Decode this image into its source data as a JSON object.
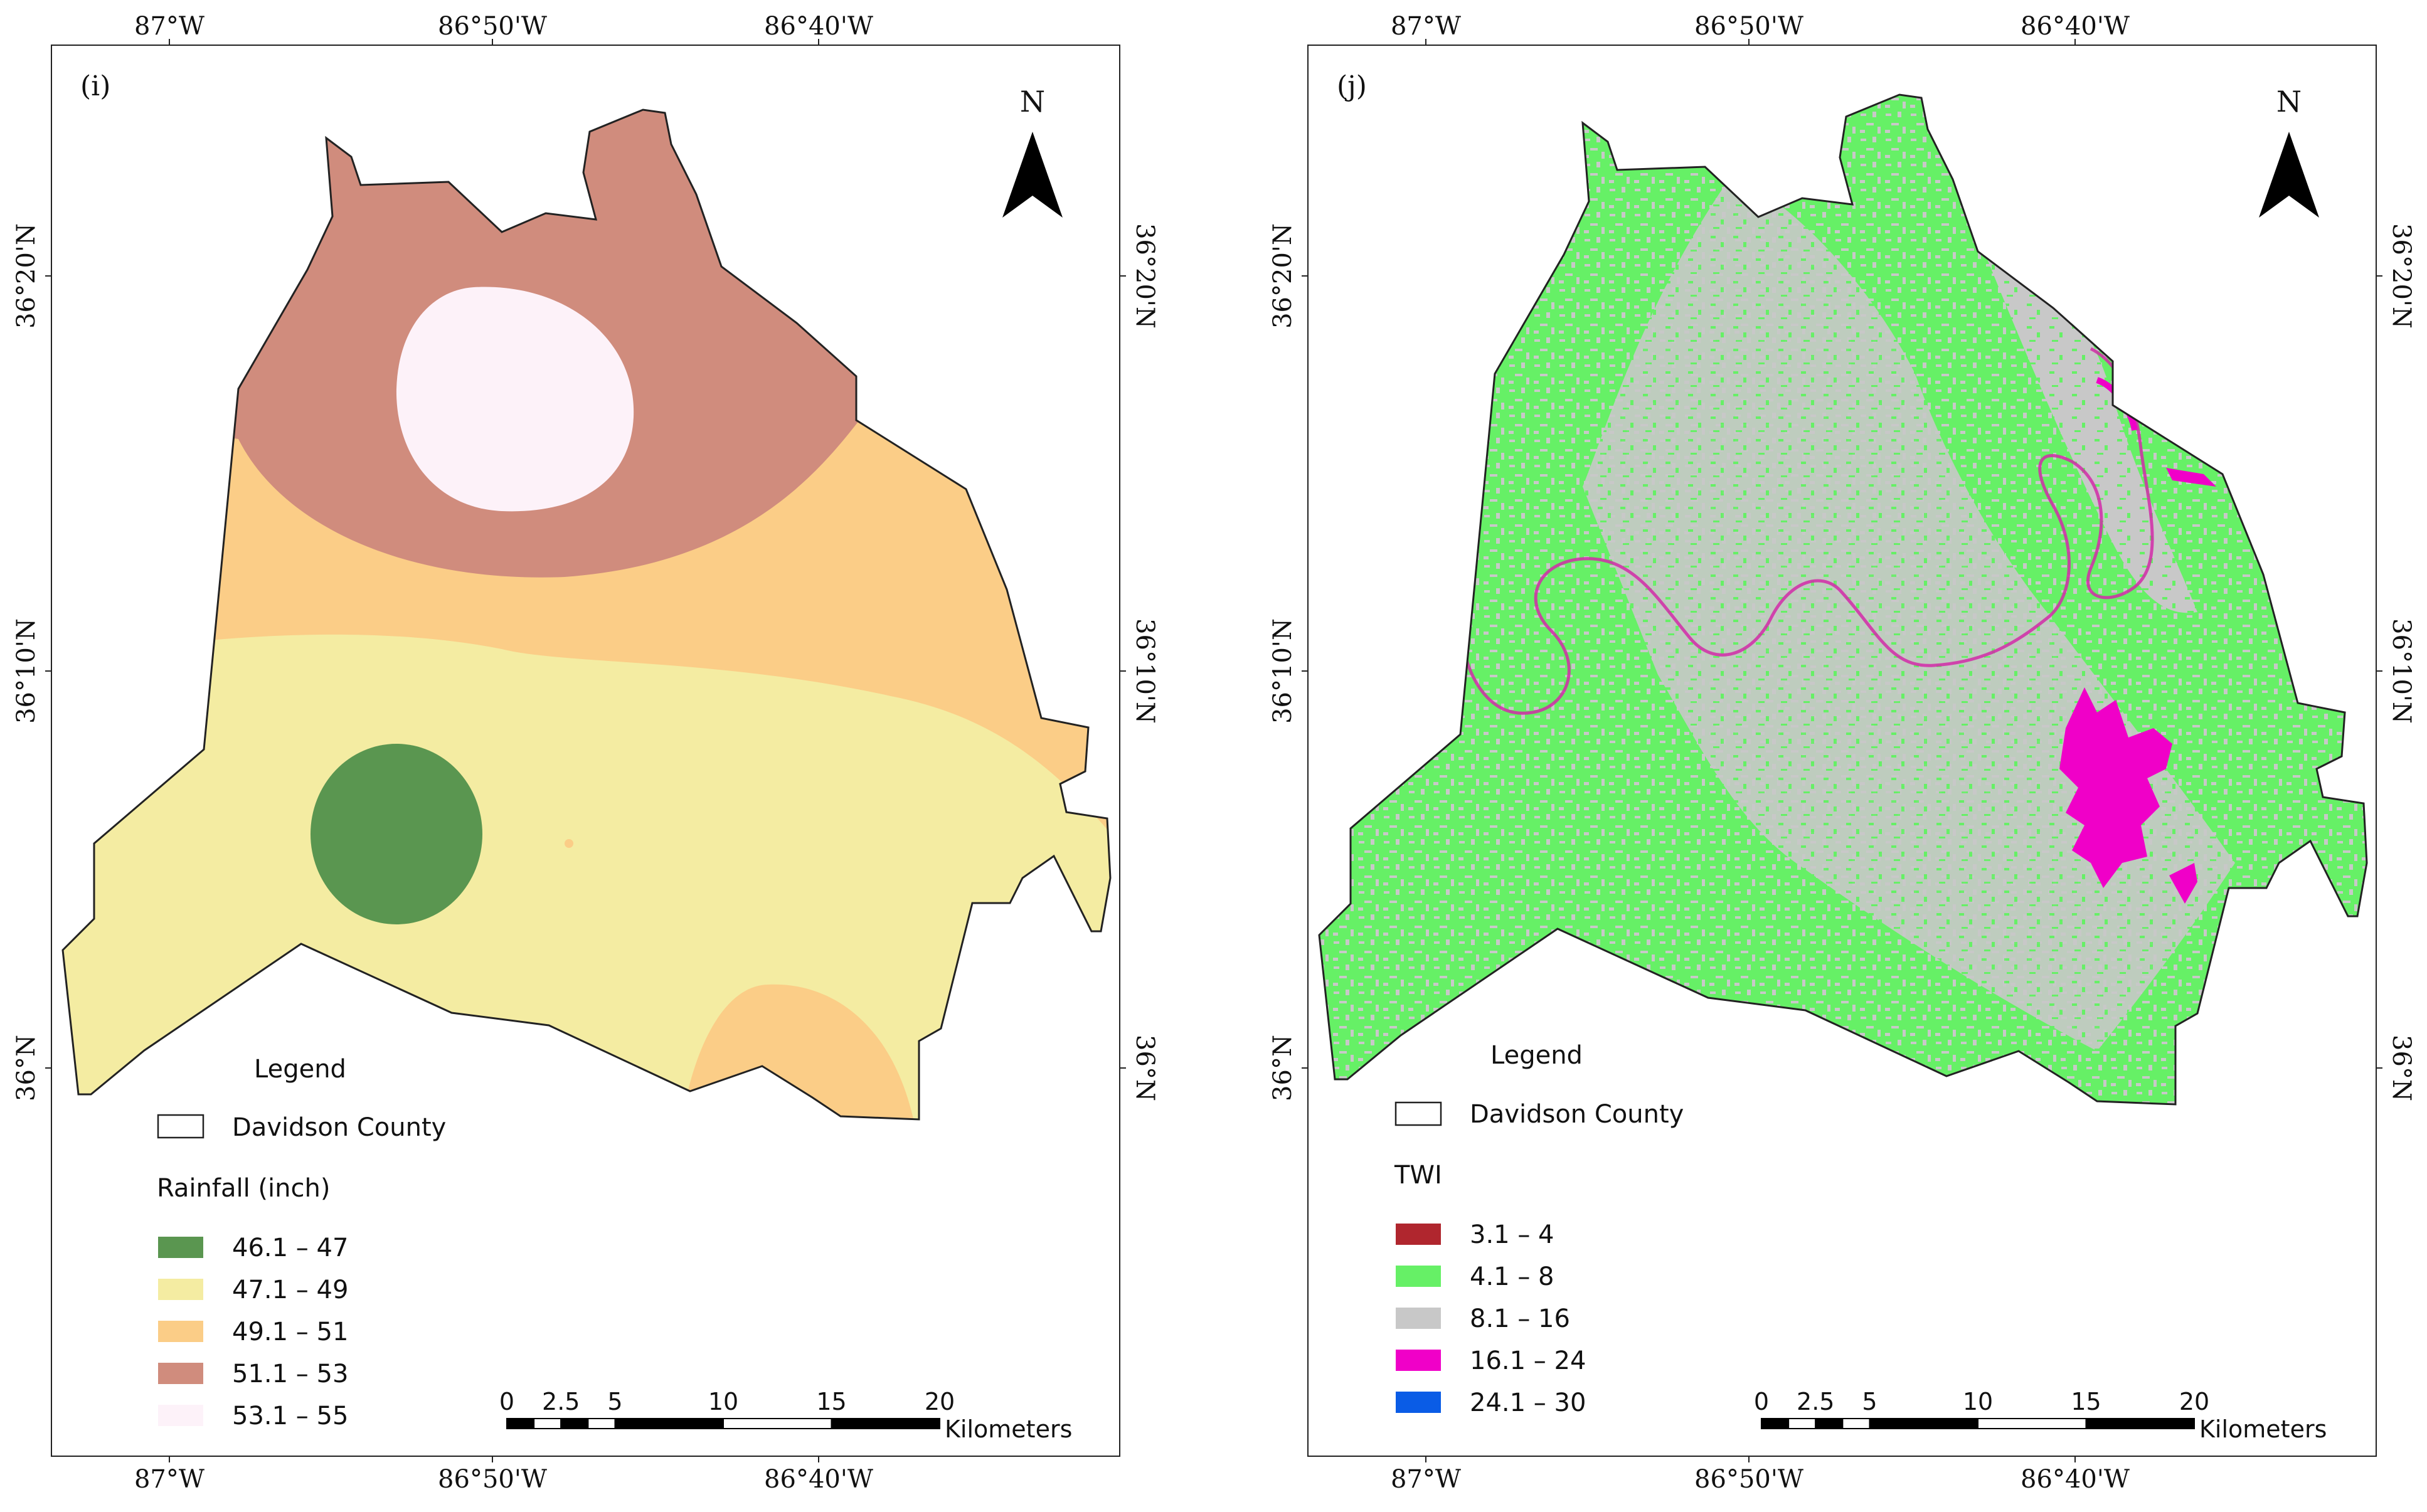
{
  "panels": [
    {
      "label": "(i)",
      "north": "N",
      "lon_top": [
        "87°W",
        "86°50'W",
        "86°40'W"
      ],
      "lon_bottom": [
        "87°W",
        "86°50'W",
        "86°40'W"
      ],
      "lat_left": [
        "36°20'N",
        "36°10'N",
        "36°N"
      ],
      "lat_right": [
        "36°20'N",
        "36°10'N",
        "36°N"
      ],
      "legend": {
        "title": "Legend",
        "boundary_label": "Davidson County",
        "variable_title": "Rainfall (inch)",
        "classes": [
          {
            "label": "46.1 – 47",
            "color": "#5a9650"
          },
          {
            "label": "47.1 – 49",
            "color": "#f4eca2"
          },
          {
            "label": "49.1 – 51",
            "color": "#fbcd87"
          },
          {
            "label": "51.1 – 53",
            "color": "#d08c7d"
          },
          {
            "label": "53.1 – 55",
            "color": "#fdf2f9"
          }
        ]
      },
      "scalebar": {
        "ticks": [
          "0",
          "2.5",
          "5",
          "10",
          "15",
          "20"
        ],
        "unit": "Kilometers"
      }
    },
    {
      "label": "(j)",
      "north": "N",
      "lon_top": [
        "87°W",
        "86°50'W",
        "86°40'W"
      ],
      "lon_bottom": [
        "87°W",
        "86°50'W",
        "86°40'W"
      ],
      "lat_left": [
        "36°20'N",
        "36°10'N",
        "36°N"
      ],
      "lat_right": [
        "36°20'N",
        "36°10'N",
        "36°N"
      ],
      "legend": {
        "title": "Legend",
        "boundary_label": "Davidson County",
        "variable_title": "TWI",
        "classes": [
          {
            "label": "3.1 – 4",
            "color": "#b0262e"
          },
          {
            "label": "4.1 – 8",
            "color": "#66f066"
          },
          {
            "label": "8.1 – 16",
            "color": "#c8c8c8"
          },
          {
            "label": "16.1 – 24",
            "color": "#f000c8"
          },
          {
            "label": "24.1 – 30",
            "color": "#0a5ce6"
          }
        ]
      },
      "scalebar": {
        "ticks": [
          "0",
          "2.5",
          "5",
          "10",
          "15",
          "20"
        ],
        "unit": "Kilometers"
      }
    }
  ]
}
